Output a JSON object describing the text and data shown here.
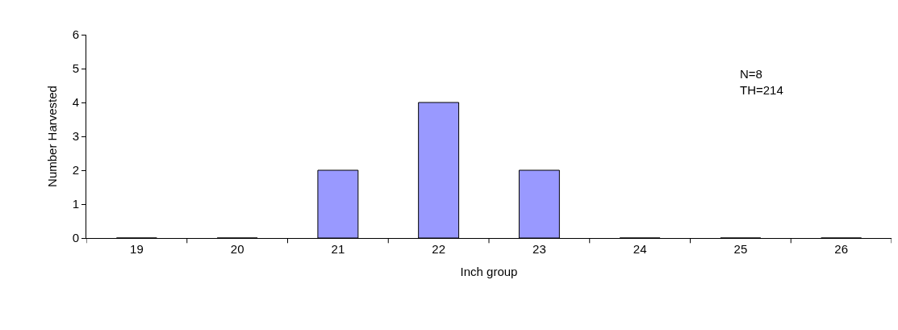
{
  "chart_data": {
    "type": "bar",
    "xlabel": "Inch group",
    "ylabel": "Number Harvested",
    "categories": [
      "19",
      "20",
      "21",
      "22",
      "23",
      "24",
      "25",
      "26"
    ],
    "values": [
      0,
      0,
      2,
      4,
      2,
      0,
      0,
      0
    ],
    "color": "#9999ff",
    "ylim": [
      0,
      6
    ],
    "yticks": [
      0,
      1,
      2,
      3,
      4,
      5,
      6
    ],
    "annotations": [
      "N=8\nTH=214"
    ]
  }
}
